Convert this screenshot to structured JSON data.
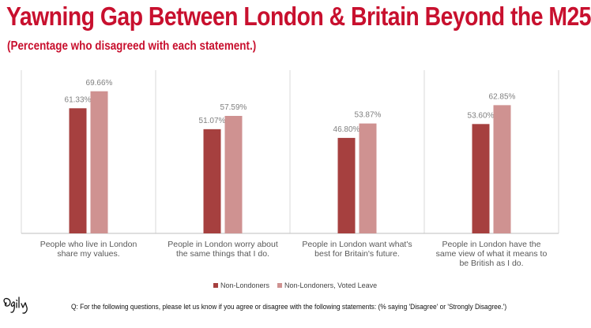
{
  "title": "Yawning Gap Between London & Britain Beyond the M25",
  "subtitle": "(Percentage who disagreed with each statement.)",
  "colors": {
    "title": "#c8102e",
    "series1": "#a6403f",
    "series2": "#cf9291",
    "grid": "#d9d9d9",
    "axis": "#bfbfbf",
    "label": "#7f7f7f"
  },
  "chart_data": {
    "type": "bar",
    "categories": [
      [
        "People who live in London",
        "share my values."
      ],
      [
        "People in London worry about",
        "the same things that I do."
      ],
      [
        "People in London want what's",
        "best for Britain's future."
      ],
      [
        "People in London have the",
        "same view of what it means to",
        "be British as I do."
      ]
    ],
    "series": [
      {
        "name": "Non-Londoners",
        "values": [
          61.33,
          51.07,
          46.8,
          53.6
        ],
        "labels": [
          "61.33%",
          "51.07%",
          "46.80%",
          "53.60%"
        ]
      },
      {
        "name": "Non-Londoners, Voted Leave",
        "values": [
          69.66,
          57.59,
          53.87,
          62.85
        ],
        "labels": [
          "69.66%",
          "57.59%",
          "53.87%",
          "62.85%"
        ]
      }
    ],
    "ylim": [
      0,
      80
    ],
    "grid": "vertical separators between categories",
    "legend": "bottom-center"
  },
  "legend": {
    "items": [
      "Non-Londoners",
      "Non-Londoners, Voted Leave"
    ]
  },
  "logo": {
    "text": "Ogilvy",
    "icon": "ogilvy-signature-logo"
  },
  "footnote": "Q: For the following questions, please let us know if you agree or disagree with the following statements: (% saying 'Disagree' or 'Strongly Disagree.')"
}
